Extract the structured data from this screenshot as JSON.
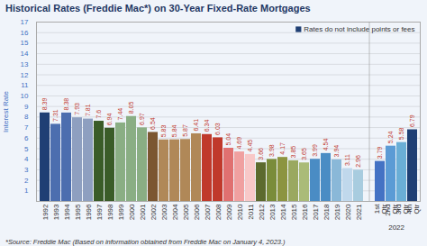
{
  "chart_data": {
    "type": "bar",
    "title": "Historical Rates (Freddie Mac*) on 30-Year Fixed-Rate Mortgages",
    "y_label": "Interest Rate",
    "caption": "*Source: Freddie Mac (Based on information obtained from Freddie Mac on January 4, 2023.)",
    "categories": [
      "1992",
      "1993",
      "1994",
      "1995",
      "1996",
      "1997",
      "1998",
      "1999",
      "2000",
      "2001",
      "2002",
      "2003",
      "2004",
      "2005",
      "2006",
      "2007",
      "2008",
      "2009",
      "2010",
      "2011",
      "2012",
      "2013",
      "2014",
      "2015",
      "2016",
      "2017",
      "2018",
      "2019",
      "2020",
      "2021",
      "1st\nQtr",
      "2nd\nQtr",
      "3rd\nQtr",
      "4th\nQtr"
    ],
    "values": [
      8.39,
      7.31,
      8.38,
      7.93,
      7.81,
      7.6,
      6.94,
      7.44,
      8.05,
      6.97,
      6.54,
      5.83,
      5.84,
      5.87,
      6.41,
      6.34,
      6.03,
      5.04,
      4.69,
      4.45,
      3.66,
      3.98,
      4.17,
      3.85,
      3.65,
      3.99,
      4.54,
      3.94,
      3.11,
      2.96,
      3.79,
      5.24,
      5.58,
      6.79
    ],
    "colors": [
      "#1F3F74",
      "#4C6EAF",
      "#4C6EAF",
      "#8E9FC0",
      "#8E9FC0",
      "#3A5C28",
      "#3A5C28",
      "#8AAE84",
      "#8AAE84",
      "#8AAE84",
      "#7B5631",
      "#B08858",
      "#B08858",
      "#B08858",
      "#B08858",
      "#C0392B",
      "#C0392B",
      "#E07070",
      "#F0A0A0",
      "#F8C8C8",
      "#5C6A2E",
      "#7A8C3A",
      "#8C9440",
      "#9AA860",
      "#AABB78",
      "#4A8CC4",
      "#4A8CC4",
      "#8AB8D8",
      "#C0D8EC",
      "#A8CCDF",
      "#4472C4",
      "#5B9BD5",
      "#6AAED6",
      "#1F3F74"
    ],
    "ylim": [
      0,
      17
    ],
    "yticks": [
      1,
      2,
      3,
      4,
      5,
      6,
      7,
      8,
      9,
      10,
      11,
      12,
      13,
      14,
      15,
      16,
      17
    ],
    "grid": true,
    "data_labels": true,
    "legend": "upper right",
    "legend_entries": [
      {
        "name": "Rates do not include points or fees",
        "color": "#1F3F74"
      }
    ],
    "annotations": [
      {
        "text": "2022",
        "from": "1st\nQtr",
        "to": "4th\nQtr"
      }
    ],
    "value_label_color": "#C0392B",
    "title_color": "#1F3864",
    "axis_color": "#4472C4",
    "background_color": "#F0F4FA"
  }
}
